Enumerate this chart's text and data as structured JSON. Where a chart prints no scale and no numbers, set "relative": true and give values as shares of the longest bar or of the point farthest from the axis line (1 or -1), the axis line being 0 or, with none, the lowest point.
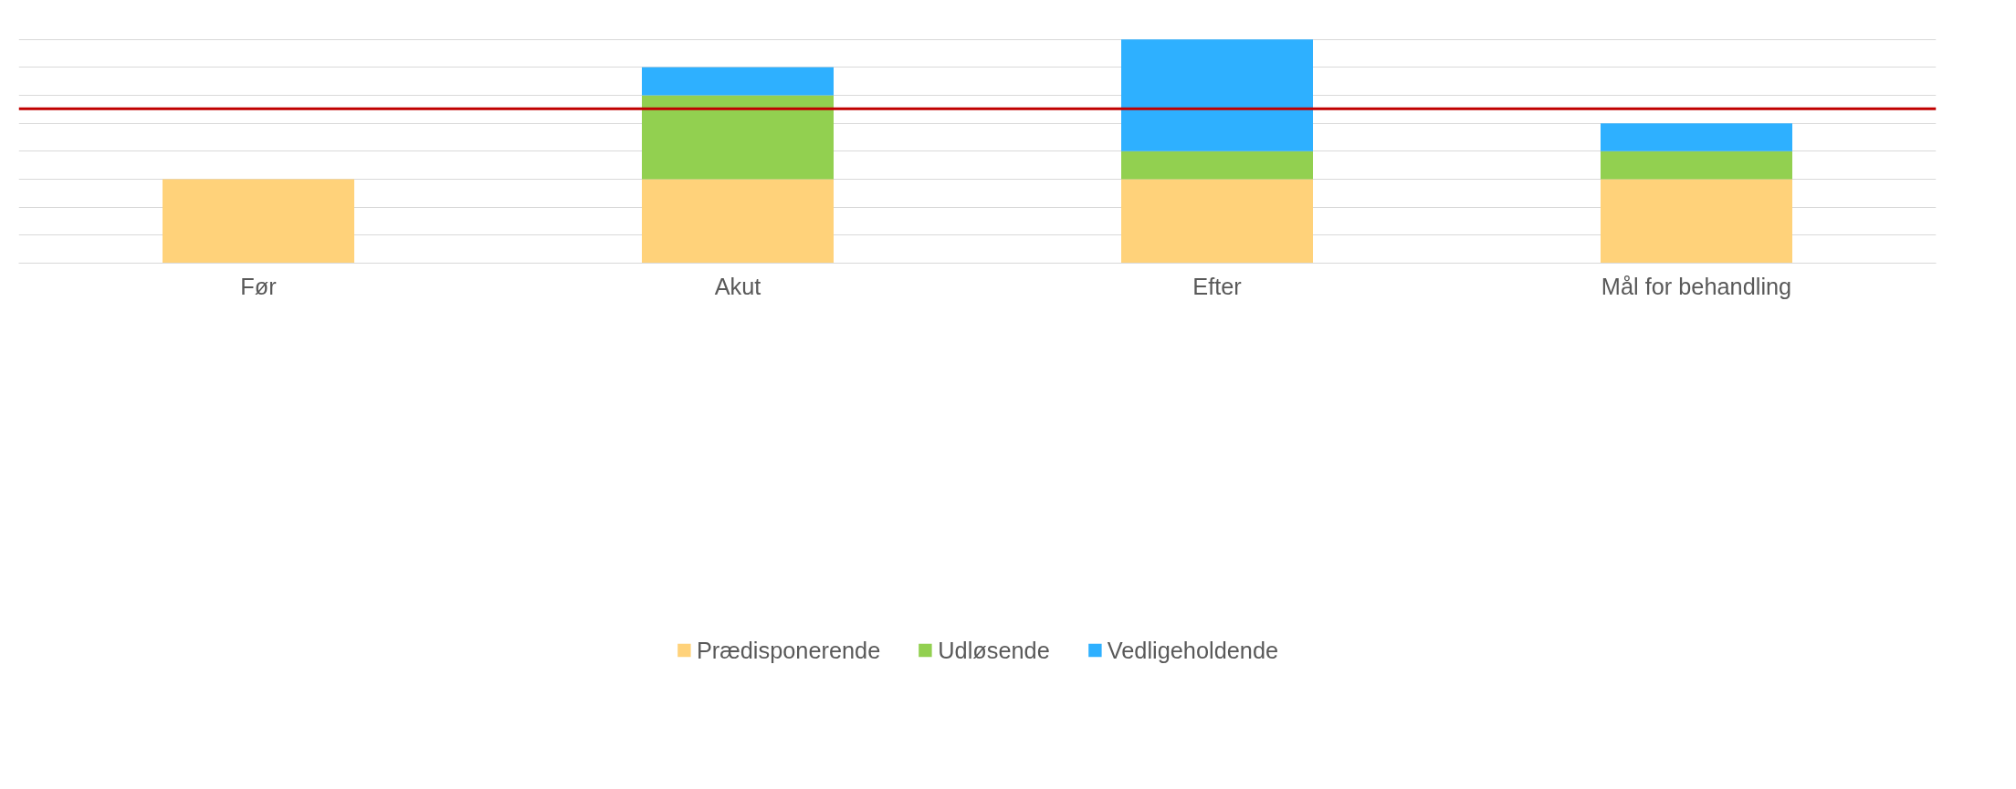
{
  "chart_data": {
    "type": "bar",
    "relative": true,
    "stacked": true,
    "categories": [
      "Før",
      "Akut",
      "Efter",
      "Mål for behandling"
    ],
    "series": [
      {
        "name": "Prædisponerende",
        "color": "#ffd27a",
        "values": [
          0.375,
          0.375,
          0.375,
          0.375
        ]
      },
      {
        "name": "Udløsende",
        "color": "#92d050",
        "values": [
          0,
          0.375,
          0.125,
          0.125
        ]
      },
      {
        "name": "Vedligeholdende",
        "color": "#2eb0ff",
        "values": [
          0,
          0.125,
          0.5,
          0.125
        ]
      }
    ],
    "ref_lines": [
      {
        "axis": "y",
        "value": 0.69,
        "color": "#c00000"
      }
    ],
    "grid": "y",
    "legend": "bottom"
  }
}
